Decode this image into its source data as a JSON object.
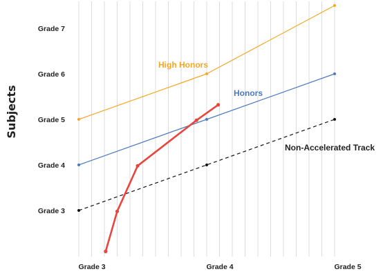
{
  "chart_data": {
    "type": "line",
    "title": "",
    "xlabel": "",
    "ylabel": "Subjects",
    "x_ticks": [
      {
        "label": "Grade 3",
        "value": 3
      },
      {
        "label": "Grade 4",
        "value": 4
      },
      {
        "label": "Grade 5",
        "value": 5
      }
    ],
    "y_ticks": [
      {
        "label": "Grade 3",
        "value": 3
      },
      {
        "label": "Grade 4",
        "value": 4
      },
      {
        "label": "Grade 5",
        "value": 5
      },
      {
        "label": "Grade 6",
        "value": 6
      },
      {
        "label": "Grade 7",
        "value": 7
      }
    ],
    "xlim": [
      3,
      5
    ],
    "ylim": [
      2,
      7.5
    ],
    "grid": "vertical",
    "series": [
      {
        "name": "High Honors",
        "color": "#f5a623",
        "dash": "none",
        "points": [
          [
            3,
            5
          ],
          [
            4,
            6
          ],
          [
            5,
            7.5
          ]
        ]
      },
      {
        "name": "Honors",
        "color": "#4a78c2",
        "dash": "none",
        "points": [
          [
            3,
            4
          ],
          [
            4,
            5
          ],
          [
            5,
            6
          ]
        ]
      },
      {
        "name": "Non-Accelerated Track",
        "color": "#111111",
        "dash": "dashed",
        "points": [
          [
            3,
            3
          ],
          [
            4,
            4
          ],
          [
            5,
            5
          ]
        ]
      },
      {
        "name": "",
        "color": "#e8453c",
        "dash": "none",
        "points": [
          [
            3.21,
            2.1
          ],
          [
            3.3,
            2.98
          ],
          [
            3.46,
            3.98
          ],
          [
            3.92,
            4.98
          ],
          [
            4.09,
            5.32
          ]
        ]
      }
    ]
  }
}
